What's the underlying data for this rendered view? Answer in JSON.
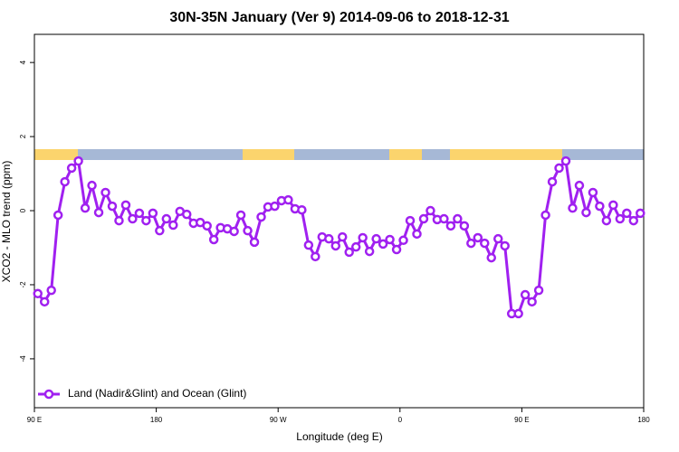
{
  "chart_data": {
    "type": "line",
    "title": "30N-35N January (Ver 9)   2014-09-06 to 2018-12-31",
    "x_label": "Longitude (deg E)",
    "y_label": "XCO2 - MLO trend (ppm)",
    "xlim": [
      90,
      540
    ],
    "ylim": [
      -5.32,
      4.76
    ],
    "xticks": [
      {
        "value": 90,
        "label": "90 E"
      },
      {
        "value": 180,
        "label": "180"
      },
      {
        "value": 270,
        "label": "90 W"
      },
      {
        "value": 360,
        "label": "0"
      },
      {
        "value": 450,
        "label": "90 E"
      },
      {
        "value": 540,
        "label": "180"
      }
    ],
    "yticks": [
      -4,
      -2,
      0,
      2,
      4
    ],
    "x": [
      92.5,
      97.5,
      102.5,
      107.5,
      112.5,
      117.5,
      122.5,
      127.5,
      132.5,
      137.5,
      142.5,
      147.5,
      152.5,
      157.5,
      162.5,
      167.5,
      172.5,
      177.5,
      182.5,
      187.5,
      192.5,
      197.5,
      202.5,
      207.5,
      212.5,
      217.5,
      222.5,
      227.5,
      232.5,
      237.5,
      242.5,
      247.5,
      252.5,
      257.5,
      262.5,
      267.5,
      272.5,
      277.5,
      282.5,
      287.5,
      292.5,
      297.5,
      302.5,
      307.5,
      312.5,
      317.5,
      322.5,
      327.5,
      332.5,
      337.5,
      342.5,
      347.5,
      352.5,
      357.5,
      362.5,
      367.5,
      372.5,
      377.5,
      382.5,
      387.5,
      392.5,
      397.5,
      402.5,
      407.5,
      412.5,
      417.5,
      422.5,
      427.5,
      432.5,
      437.5,
      442.5,
      447.5,
      452.5,
      457.5,
      462.5,
      467.5,
      472.5,
      477.5,
      482.5,
      487.5,
      492.5,
      497.5,
      502.5,
      507.5,
      512.5,
      517.5,
      522.5,
      527.5,
      532.5,
      537.5
    ],
    "legend": "bottom-left",
    "series": [
      {
        "name": "Land (Nadir&Glint) and Ocean (Glint)",
        "color": "#a020f0",
        "values": [
          -2.24,
          -2.46,
          -2.15,
          -0.12,
          0.78,
          1.15,
          1.34,
          0.07,
          0.68,
          -0.05,
          0.49,
          0.12,
          -0.27,
          0.15,
          -0.22,
          -0.07,
          -0.27,
          -0.07,
          -0.54,
          -0.22,
          -0.39,
          -0.02,
          -0.1,
          -0.34,
          -0.32,
          -0.41,
          -0.78,
          -0.46,
          -0.49,
          -0.56,
          -0.12,
          -0.54,
          -0.85,
          -0.17,
          0.1,
          0.12,
          0.27,
          0.29,
          0.05,
          0.02,
          -0.93,
          -1.24,
          -0.71,
          -0.76,
          -0.95,
          -0.71,
          -1.12,
          -0.98,
          -0.73,
          -1.1,
          -0.76,
          -0.9,
          -0.78,
          -1.05,
          -0.8,
          -0.27,
          -0.63,
          -0.22,
          0.0,
          -0.24,
          -0.22,
          -0.41,
          -0.22,
          -0.41,
          -0.88,
          -0.73,
          -0.88,
          -1.27,
          -0.76,
          -0.95,
          -2.78,
          -2.78,
          -2.27,
          -2.46,
          -2.15,
          -0.12,
          0.78,
          1.15,
          1.34,
          0.07,
          0.68,
          -0.05,
          0.49,
          0.12,
          -0.27,
          0.15,
          -0.22,
          -0.07,
          -0.27,
          -0.07
        ]
      }
    ]
  }
}
